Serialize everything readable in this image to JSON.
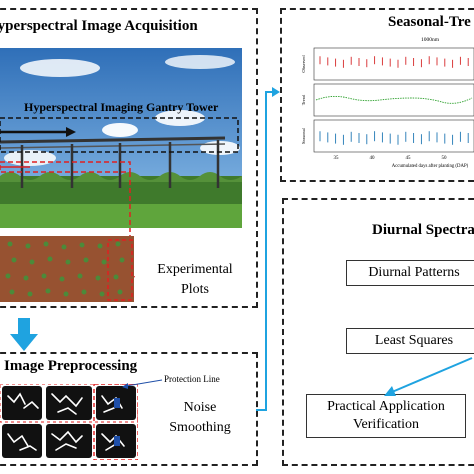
{
  "acquisition": {
    "title": "Hyperspectral Image Acquisition",
    "photo_caption": "Hyperspectral Imaging Gantry Tower",
    "plots_label_line1": "Experimental",
    "plots_label_line2": "Plots"
  },
  "preprocessing": {
    "title": "Image Preprocessing",
    "protection_line_label": "Protection Line",
    "noise_label_line1": "Noise",
    "noise_label_line2": "Smoothing"
  },
  "seasonal": {
    "title": "Seasonal-Tre",
    "chart_title": "1000nm",
    "row_labels": [
      "Observed",
      "Trend",
      "Seasonal"
    ],
    "xlabel": "Accumulated days after planting (DAP)",
    "x_ticks": [
      "35",
      "40",
      "45",
      "50"
    ]
  },
  "diurnal": {
    "title": "Diurnal Spectra",
    "box_patterns": "Diurnal Patterns",
    "box_least_squares": "Least Squares",
    "box_verification_line1": "Practical Application",
    "box_verification_line2": "Verification"
  },
  "colors": {
    "arrow_blue": "#1fa3e0",
    "observed_red": "#d62728",
    "trend_green": "#2ca02c",
    "seasonal_blue": "#1f77b4",
    "gantry_red": "#e02020"
  }
}
